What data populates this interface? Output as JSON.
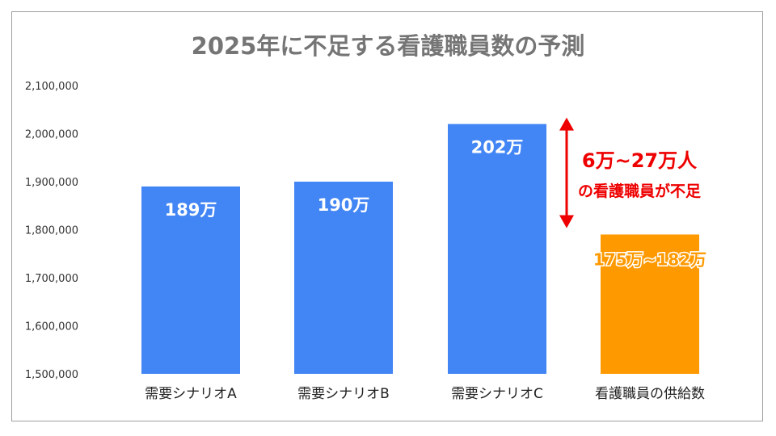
{
  "chart_data": {
    "type": "bar",
    "title": "2025年に不足する看護職員数の予測",
    "xlabel": "",
    "ylabel": "",
    "ylim": [
      1500000,
      2100000
    ],
    "yticks": [
      "2,100,000",
      "2,000,000",
      "1,900,000",
      "1,800,000",
      "1,700,000",
      "1,600,000",
      "1,500,000"
    ],
    "ytick_values": [
      2100000,
      2000000,
      1900000,
      1800000,
      1700000,
      1600000,
      1500000
    ],
    "grid": false,
    "categories": [
      "需要シナリオA",
      "需要シナリオB",
      "需要シナリオC",
      "看護職員の供給数"
    ],
    "values": [
      1890000,
      1900000,
      2020000,
      1790000
    ],
    "data_labels": [
      "189万",
      "190万",
      "202万",
      "175万~182万"
    ],
    "colors": {
      "demand": "#4285f4",
      "supply": "#ff9900",
      "annotation": "#ee0000"
    },
    "annotation": {
      "line1": "6万~27万人",
      "line2": "の看護職員が不足",
      "arrow_from": 1790000,
      "arrow_to": 2020000
    }
  }
}
